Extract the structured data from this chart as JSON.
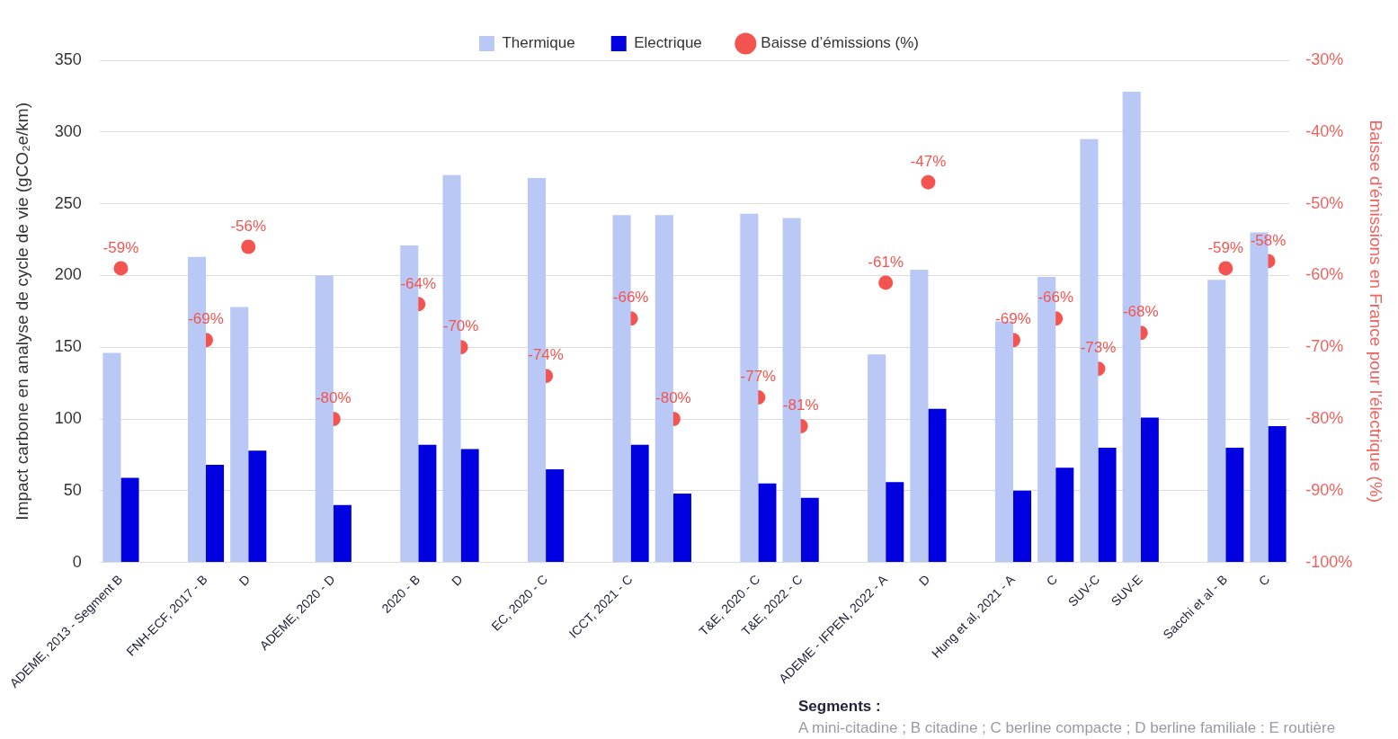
{
  "chart_data": {
    "type": "bar",
    "categories": [
      "ADEME, 2013 - Segment B",
      null,
      "FNH-ECF, 2017 - B",
      "D",
      null,
      "ADEME, 2020 - D",
      null,
      "2020 - B",
      "D",
      null,
      "EC, 2020 - C",
      null,
      "ICCT, 2021 - C",
      null,
      null,
      "T&E, 2020 - C",
      "T&E, 2022 - C",
      null,
      "ADEME - IFPEN, 2022 - A",
      "D",
      null,
      "Hung et al, 2021 - A",
      "C",
      "SUV-C",
      "SUV-E",
      null,
      "Sacchi et al - B",
      "C"
    ],
    "series": [
      {
        "name": "Thermique",
        "color": "#b9c8f5",
        "values": [
          146,
          null,
          213,
          178,
          null,
          200,
          null,
          221,
          270,
          null,
          268,
          null,
          242,
          242,
          null,
          243,
          240,
          null,
          145,
          204,
          null,
          168,
          199,
          295,
          328,
          null,
          197,
          230
        ]
      },
      {
        "name": "Electrique",
        "color": "#0000e0",
        "values": [
          59,
          null,
          68,
          78,
          null,
          40,
          null,
          82,
          79,
          null,
          65,
          null,
          82,
          48,
          null,
          55,
          45,
          null,
          56,
          107,
          null,
          50,
          66,
          80,
          101,
          null,
          80,
          95
        ]
      },
      {
        "name": "Baisse d’émissions (%)",
        "type": "scatter",
        "axis": "y2",
        "color": "#f4544f",
        "values": [
          -59,
          null,
          -69,
          -56,
          null,
          -80,
          null,
          -64,
          -70,
          null,
          -74,
          null,
          -66,
          -80,
          null,
          -77,
          -81,
          null,
          -61,
          -47,
          null,
          -69,
          -66,
          -73,
          -68,
          null,
          -59,
          -58
        ],
        "value_labels": [
          "-59%",
          null,
          "-69%",
          "-56%",
          null,
          "-80%",
          null,
          "-64%",
          "-70%",
          null,
          "-74%",
          null,
          "-66%",
          "-80%",
          null,
          "-77%",
          "-81%",
          null,
          "-61%",
          "-47%",
          null,
          "-69%",
          "-66%",
          "-73%",
          "-68%",
          null,
          "-59%",
          "-58%"
        ]
      }
    ],
    "ylabel": "Impact carbone en analyse de cycle de vie (gCO₂e/km)",
    "y2label": "Baisse d'émissions en France pour l'électrique (%)",
    "ylim": [
      0,
      350
    ],
    "yticks": [
      0,
      50,
      100,
      150,
      200,
      250,
      300,
      350
    ],
    "y2lim": [
      -100,
      -30
    ],
    "y2ticks": [
      {
        "value": -100,
        "label": "-100%"
      },
      {
        "value": -90,
        "label": "-90%"
      },
      {
        "value": -80,
        "label": "-80%"
      },
      {
        "value": -70,
        "label": "-70%"
      },
      {
        "value": -60,
        "label": "-60%"
      },
      {
        "value": -50,
        "label": "-50%"
      },
      {
        "value": -40,
        "label": "-40%"
      },
      {
        "value": -30,
        "label": "-30%"
      }
    ],
    "grid": "y",
    "legend": "top",
    "marker": "circle",
    "annotations": [
      "Segments :",
      "A mini-citadine ; B citadine ; C berline compacte ; D berline familiale : E routière"
    ]
  }
}
